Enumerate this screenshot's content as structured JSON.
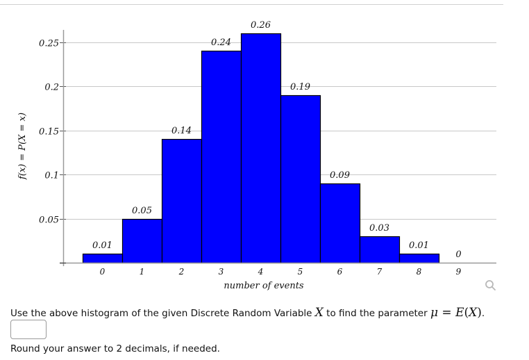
{
  "chart_data": {
    "type": "bar",
    "title": "",
    "xlabel": "number of events",
    "ylabel": "f(x) = P(X = x)",
    "categories": [
      "0",
      "1",
      "2",
      "3",
      "4",
      "5",
      "6",
      "7",
      "8",
      "9"
    ],
    "values": [
      0.01,
      0.05,
      0.14,
      0.24,
      0.26,
      0.19,
      0.09,
      0.03,
      0.01,
      0
    ],
    "value_labels": [
      "0.01",
      "0.05",
      "0.14",
      "0.24",
      "0.26",
      "0.19",
      "0.09",
      "0.03",
      "0.01",
      "0"
    ],
    "y_ticks": [
      0.05,
      0.1,
      0.15,
      0.2,
      0.25
    ],
    "y_tick_labels": [
      "0.05",
      "0.1",
      "0.15",
      "0.2",
      "0.25"
    ],
    "ylim": [
      0,
      0.26
    ],
    "grid": true,
    "bar_color": "#0000ff",
    "bar_edge_color": "#000000",
    "legend": null
  },
  "question": {
    "prefix": "Use the above histogram of the given Discrete Random Variable ",
    "var": "X",
    "middle": " to find the parameter ",
    "mu": "μ",
    "eq": " = ",
    "E": "E",
    "paren_open": "(",
    "paren_close": ")",
    "suffix": "."
  },
  "answer": {
    "value": "",
    "placeholder": ""
  },
  "hint": "Round your answer to 2 decimals, if needed.",
  "icons": {
    "zoom": "magnifier-icon"
  }
}
